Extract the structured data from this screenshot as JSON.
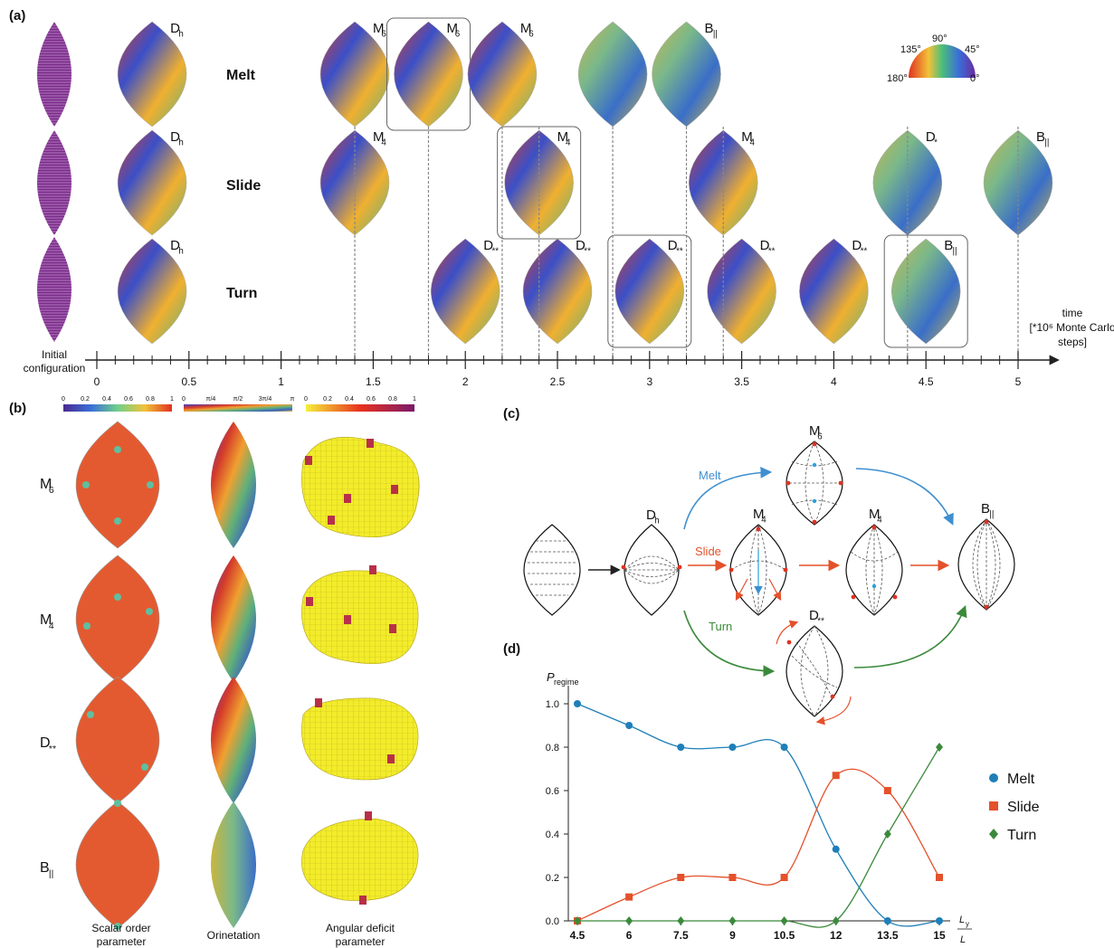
{
  "panel_a": {
    "label": "(a)",
    "rows": [
      {
        "name": "Melt",
        "shapes": [
          {
            "tag": "D",
            "sub": "h",
            "t": 0.3
          },
          {
            "tag": "M",
            "sub": "6",
            "t": 1.4
          },
          {
            "tag": "M",
            "sub": "6",
            "t": 1.8,
            "boxed": true
          },
          {
            "tag": "M",
            "sub": "6",
            "t": 2.2
          },
          {
            "tag": "",
            "sub": "",
            "t": 2.8
          },
          {
            "tag": "B",
            "sub": "||",
            "t": 3.2
          }
        ]
      },
      {
        "name": "Slide",
        "shapes": [
          {
            "tag": "D",
            "sub": "h",
            "t": 0.3
          },
          {
            "tag": "M",
            "sub": "4",
            "t": 1.4
          },
          {
            "tag": "M",
            "sub": "4",
            "t": 2.4,
            "boxed": true
          },
          {
            "tag": "M",
            "sub": "4",
            "t": 3.4
          },
          {
            "tag": "D",
            "sub": "*",
            "t": 4.4
          },
          {
            "tag": "B",
            "sub": "||",
            "t": 5.0
          }
        ]
      },
      {
        "name": "Turn",
        "shapes": [
          {
            "tag": "D",
            "sub": "h",
            "t": 0.3
          },
          {
            "tag": "D",
            "sub": "**",
            "t": 2.0
          },
          {
            "tag": "D",
            "sub": "**",
            "t": 2.5
          },
          {
            "tag": "D",
            "sub": "**",
            "t": 3.0,
            "boxed": true
          },
          {
            "tag": "D",
            "sub": "**",
            "t": 3.5
          },
          {
            "tag": "D",
            "sub": "**",
            "t": 4.0
          },
          {
            "tag": "B",
            "sub": "||",
            "t": 4.5,
            "boxed": true
          }
        ]
      }
    ],
    "initial_label": [
      "Initial",
      "configuration"
    ],
    "time_label": [
      "time",
      "[*10⁶ Monte Carlo",
      "steps]"
    ],
    "axis_ticks": [
      "0",
      "0.5",
      "1",
      "1.5",
      "2",
      "2.5",
      "3",
      "3.5",
      "4",
      "4.5",
      "5"
    ],
    "dial_labels": [
      "135°",
      "90°",
      "45°",
      "180°",
      "0°"
    ],
    "drop_times": [
      1.4,
      1.8,
      2.2,
      2.4,
      2.8,
      3.2,
      3.4,
      4.4,
      5.0
    ]
  },
  "panel_b": {
    "label": "(b)",
    "rows": [
      {
        "tag": "M",
        "sub": "6"
      },
      {
        "tag": "M",
        "sub": "4"
      },
      {
        "tag": "D",
        "sub": "**"
      },
      {
        "tag": "B",
        "sub": "||"
      }
    ],
    "bars": [
      {
        "ticks": [
          "0",
          "0.2",
          "0.4",
          "0.6",
          "0.8",
          "1"
        ]
      },
      {
        "ticks": [
          "0",
          "π/4",
          "π/2",
          "3π/4",
          "π"
        ]
      },
      {
        "ticks": [
          "0",
          "0.2",
          "0.4",
          "0.6",
          "0.8",
          "1"
        ]
      }
    ],
    "columns": [
      [
        "Scalar order",
        "parameter"
      ],
      [
        "Orinetation"
      ],
      [
        "Angular deficit",
        "parameter"
      ]
    ]
  },
  "panel_c": {
    "label": "(c)",
    "path_labels": {
      "melt": "Melt",
      "slide": "Slide",
      "turn": "Turn"
    },
    "nodes": {
      "dh": {
        "tag": "D",
        "sub": "h"
      },
      "m6": {
        "tag": "M",
        "sub": "6"
      },
      "m4a": {
        "tag": "M",
        "sub": "4"
      },
      "m4b": {
        "tag": "M",
        "sub": "4"
      },
      "dss": {
        "tag": "D",
        "sub": "**"
      },
      "b": {
        "tag": "B",
        "sub": "||"
      }
    },
    "colors": {
      "melt": "#3f8fd0",
      "slide": "#e4512b",
      "turn": "#3b8a3b"
    }
  },
  "panel_d": {
    "label": "(d)",
    "ylabel": "P",
    "ylabel_sub": "regime",
    "xlabel_num": "L",
    "xlabel_num_sub": "y",
    "xlabel_den": "L",
    "colors": {
      "Melt": "#1f7fb8",
      "Slide": "#e4512b",
      "Turn": "#3b8a3b"
    }
  },
  "chart_data": {
    "type": "line",
    "x": [
      4.5,
      6,
      7.5,
      9,
      10.5,
      12,
      13.5,
      15
    ],
    "x_tick_labels": [
      "4.5",
      "6",
      "7.5",
      "9",
      "10.5",
      "12",
      "13.5",
      "15"
    ],
    "y_tick_labels": [
      "0.0",
      "0.2",
      "0.4",
      "0.6",
      "0.8",
      "1.0"
    ],
    "ylim": [
      0,
      1.0
    ],
    "xlim": [
      4.5,
      15
    ],
    "series": [
      {
        "name": "Melt",
        "values": [
          1.0,
          0.9,
          0.8,
          0.8,
          0.8,
          0.33,
          0.0,
          0.0
        ]
      },
      {
        "name": "Slide",
        "values": [
          0.0,
          0.11,
          0.2,
          0.2,
          0.2,
          0.67,
          0.6,
          0.2
        ]
      },
      {
        "name": "Turn",
        "values": [
          0.0,
          0.0,
          0.0,
          0.0,
          0.0,
          0.0,
          0.4,
          0.8
        ]
      }
    ],
    "legend_position": "right",
    "grid": false
  }
}
